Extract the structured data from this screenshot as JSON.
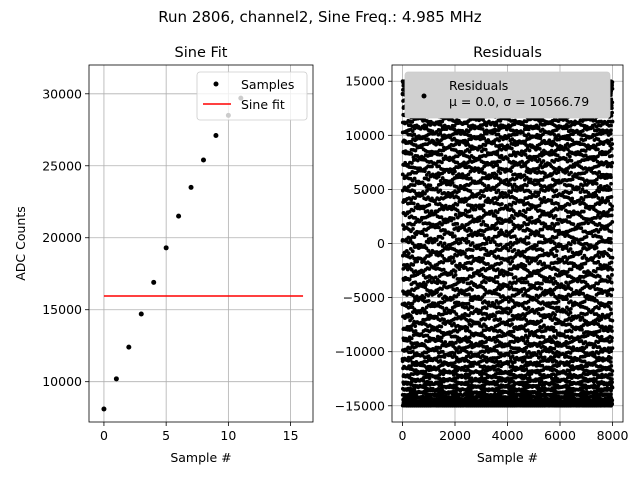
{
  "figure": {
    "suptitle": "Run 2806, channel2, Sine Freq.: 4.985 MHz"
  },
  "chart_data": [
    {
      "type": "scatter",
      "title": "Sine Fit",
      "xlabel": "Sample #",
      "ylabel": "ADC Counts",
      "xlim": [
        -1.2,
        16.8
      ],
      "ylim": [
        7200,
        32000
      ],
      "xticks": [
        0,
        5,
        10,
        15
      ],
      "yticks": [
        10000,
        15000,
        20000,
        25000,
        30000
      ],
      "grid": true,
      "legend_position": "upper right",
      "series": [
        {
          "name": "Samples",
          "kind": "points",
          "color": "#000000",
          "x": [
            0,
            1,
            2,
            3,
            4,
            5,
            6,
            7,
            8,
            9,
            10,
            11
          ],
          "y": [
            8100,
            10200,
            12400,
            14700,
            16900,
            19300,
            21500,
            23500,
            25400,
            27100,
            28500,
            29700
          ]
        },
        {
          "name": "Sine fit",
          "kind": "line",
          "color": "#ff0000",
          "x": [
            0,
            16
          ],
          "y": [
            15950,
            15950
          ]
        }
      ]
    },
    {
      "type": "scatter",
      "title": "Residuals",
      "xlabel": "Sample #",
      "ylabel": "",
      "xlim": [
        -400,
        8400
      ],
      "ylim": [
        -16500,
        16500
      ],
      "xticks": [
        0,
        2000,
        4000,
        6000,
        8000
      ],
      "yticks": [
        -15000,
        -10000,
        -5000,
        0,
        5000,
        10000,
        15000
      ],
      "grid": true,
      "legend_position": "upper right",
      "series": [
        {
          "name": "Residuals",
          "label_line2": "μ = 0.0, σ = 10566.79",
          "kind": "points",
          "color": "#000000",
          "x_range": [
            0,
            8000
          ],
          "y_range": [
            -15000,
            15000
          ],
          "count": 8192
        }
      ]
    }
  ]
}
